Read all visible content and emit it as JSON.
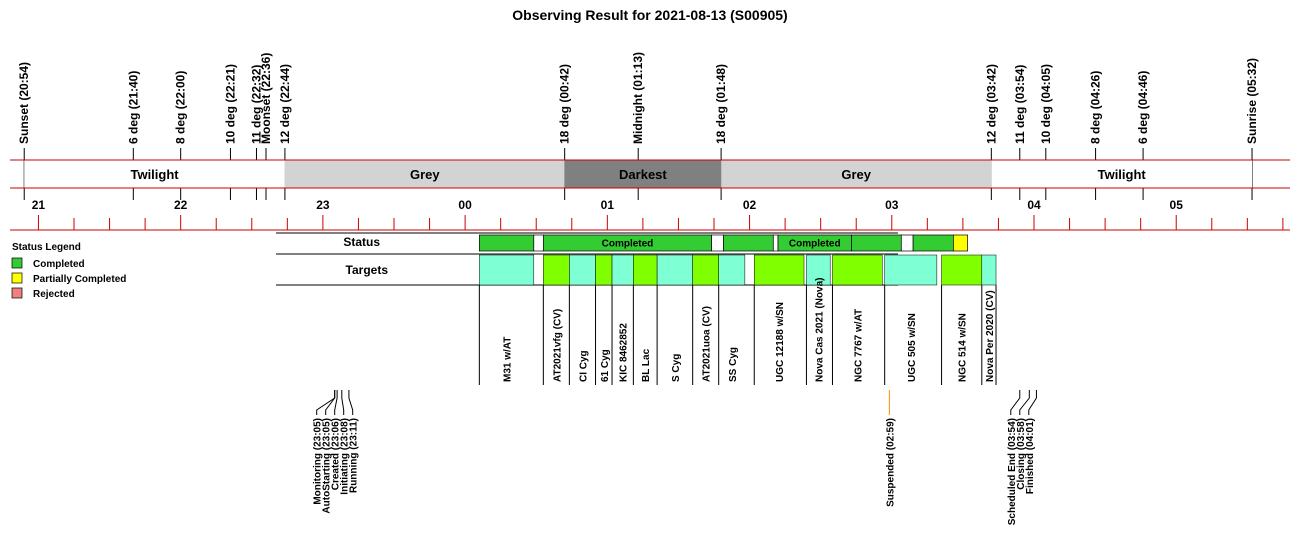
{
  "title": "Observing Result for 2021-08-13 (S00905)",
  "colors": {
    "axis_red": "#cc0000",
    "grey_band": "#d3d3d3",
    "darkest_band": "#808080",
    "completed": "#33cc33",
    "partial": "#ffff00",
    "rejected": "#f08080",
    "target_cyan": "#7fffd4",
    "target_green": "#80ff00",
    "target_label_blue": "#0000cc",
    "moon_blue": "#0000cc",
    "suspended_orange": "#ff8c00"
  },
  "legend": {
    "title": "Status Legend",
    "items": [
      {
        "label": "Completed",
        "color": "#33cc33"
      },
      {
        "label": "Partially Completed",
        "color": "#ffff00"
      },
      {
        "label": "Rejected",
        "color": "#f08080"
      }
    ]
  },
  "chart_data": {
    "type": "timeline",
    "x_unit": "hours after 20:00",
    "x_range": [
      20.8,
      29.8
    ],
    "hour_ticks": [
      "21",
      "22",
      "23",
      "00",
      "01",
      "02",
      "03",
      "04",
      "05"
    ],
    "sun_events": [
      {
        "label": "Sunset (20:54)",
        "t": 20.9,
        "color": "#000000"
      },
      {
        "label": "6 deg (21:40)",
        "t": 21.667,
        "color": "#000000"
      },
      {
        "label": "8 deg (22:00)",
        "t": 22.0,
        "color": "#000000"
      },
      {
        "label": "10 deg (22:21)",
        "t": 22.35,
        "color": "#000000"
      },
      {
        "label": "11 deg (22:32)",
        "t": 22.533,
        "color": "#000000"
      },
      {
        "label": "Moonset (22:36)",
        "t": 22.6,
        "color": "#0000cc"
      },
      {
        "label": "12 deg (22:44)",
        "t": 22.733,
        "color": "#000000"
      },
      {
        "label": "18 deg (00:42)",
        "t": 24.7,
        "color": "#000000"
      },
      {
        "label": "Midnight (01:13)",
        "t": 25.217,
        "color": "#000000"
      },
      {
        "label": "18 deg (01:48)",
        "t": 25.8,
        "color": "#000000"
      },
      {
        "label": "12 deg (03:42)",
        "t": 27.7,
        "color": "#000000"
      },
      {
        "label": "11 deg (03:54)",
        "t": 27.9,
        "color": "#000000"
      },
      {
        "label": "10 deg (04:05)",
        "t": 28.083,
        "color": "#000000"
      },
      {
        "label": "8 deg (04:26)",
        "t": 28.433,
        "color": "#000000"
      },
      {
        "label": "6 deg (04:46)",
        "t": 28.767,
        "color": "#000000"
      },
      {
        "label": "Sunrise (05:32)",
        "t": 29.533,
        "color": "#000000"
      }
    ],
    "sky_bands": [
      {
        "label": "Twilight",
        "start": 20.9,
        "end": 22.733,
        "fill": "#ffffff",
        "text_color": "#000000"
      },
      {
        "label": "Grey",
        "start": 22.733,
        "end": 24.7,
        "fill": "#d3d3d3",
        "text_color": "#000000"
      },
      {
        "label": "Darkest",
        "start": 24.7,
        "end": 25.8,
        "fill": "#808080",
        "text_color": "#ffffff"
      },
      {
        "label": "Grey",
        "start": 25.8,
        "end": 27.7,
        "fill": "#d3d3d3",
        "text_color": "#000000"
      },
      {
        "label": "Twilight",
        "start": 27.7,
        "end": 29.533,
        "fill": "#ffffff",
        "text_color": "#000000"
      }
    ],
    "status_row_label": "Status",
    "status_segments": [
      {
        "start": 24.1,
        "end": 24.483,
        "status": "completed",
        "label": ""
      },
      {
        "start": 24.483,
        "end": 24.55,
        "status": "gap",
        "label": ""
      },
      {
        "start": 24.55,
        "end": 25.733,
        "status": "completed",
        "label": "Completed"
      },
      {
        "start": 25.733,
        "end": 25.817,
        "status": "gap",
        "label": ""
      },
      {
        "start": 25.817,
        "end": 26.167,
        "status": "completed",
        "label": ""
      },
      {
        "start": 26.167,
        "end": 26.2,
        "status": "gap",
        "label": ""
      },
      {
        "start": 26.2,
        "end": 26.717,
        "status": "completed",
        "label": "Completed"
      },
      {
        "start": 26.717,
        "end": 27.067,
        "status": "completed",
        "label": ""
      },
      {
        "start": 27.067,
        "end": 27.15,
        "status": "gap",
        "label": ""
      },
      {
        "start": 27.15,
        "end": 27.433,
        "status": "completed",
        "label": ""
      },
      {
        "start": 27.433,
        "end": 27.533,
        "status": "partial",
        "label": ""
      }
    ],
    "targets_row_label": "Targets",
    "targets": [
      {
        "name": "M31 w/AT",
        "start": 24.1,
        "end": 24.483,
        "color": "cyan"
      },
      {
        "name": "AT2021vfg (CV)",
        "start": 24.55,
        "end": 24.733,
        "color": "green"
      },
      {
        "name": "CI Cyg",
        "start": 24.733,
        "end": 24.917,
        "color": "cyan"
      },
      {
        "name": "61 Cyg",
        "start": 24.917,
        "end": 25.033,
        "color": "green"
      },
      {
        "name": "KIC 8462852",
        "start": 25.033,
        "end": 25.183,
        "color": "cyan"
      },
      {
        "name": "BL Lac",
        "start": 25.183,
        "end": 25.35,
        "color": "green"
      },
      {
        "name": "S Cyg",
        "start": 25.35,
        "end": 25.6,
        "color": "cyan"
      },
      {
        "name": "AT2021uoa (CV)",
        "start": 25.6,
        "end": 25.783,
        "color": "green"
      },
      {
        "name": "SS Cyg",
        "start": 25.783,
        "end": 25.967,
        "color": "cyan"
      },
      {
        "name": "UGC 12188 w/SN",
        "start": 26.033,
        "end": 26.383,
        "color": "green"
      },
      {
        "name": "Nova Cas 2021 (Nova)",
        "start": 26.4,
        "end": 26.567,
        "color": "cyan"
      },
      {
        "name": "NGC 7767 w/AT",
        "start": 26.583,
        "end": 26.933,
        "color": "green"
      },
      {
        "name": "UGC 505 w/SN",
        "start": 26.95,
        "end": 27.317,
        "color": "cyan"
      },
      {
        "name": "NGC 514 w/SN",
        "start": 27.35,
        "end": 27.633,
        "color": "green"
      },
      {
        "name": "Nova Per 2020 (CV)",
        "start": 27.633,
        "end": 27.733,
        "color": "cyan"
      }
    ],
    "events": [
      {
        "label": "Monitoring (23:05)",
        "t": 23.083,
        "color": "#000000"
      },
      {
        "label": "AutoStarting (23:05)",
        "t": 23.083,
        "color": "#000000"
      },
      {
        "label": "Created (23:06)",
        "t": 23.1,
        "color": "#000000"
      },
      {
        "label": "Initiating (23:08)",
        "t": 23.133,
        "color": "#000000"
      },
      {
        "label": "Running (23:11)",
        "t": 23.183,
        "color": "#000000"
      },
      {
        "label": "Suspended (02:59)",
        "t": 26.983,
        "color": "#ff8c00"
      },
      {
        "label": "Scheduled End (03:54)",
        "t": 27.9,
        "color": "#000000"
      },
      {
        "label": "Closing (03:58)",
        "t": 27.967,
        "color": "#000000"
      },
      {
        "label": "Finished (04:01)",
        "t": 28.017,
        "color": "#000000"
      }
    ]
  }
}
